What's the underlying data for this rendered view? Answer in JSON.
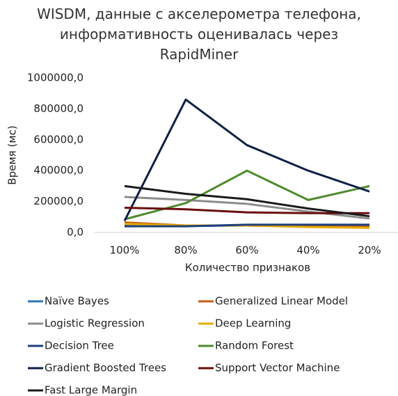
{
  "chart_data": {
    "type": "line",
    "title": "WISDM, данные с акселерометра телефона, информативность оценивалась через RapidMiner",
    "x_label": "Количество признаков",
    "y_label": "Время (мс)",
    "categories": [
      "100%",
      "80%",
      "60%",
      "40%",
      "20%"
    ],
    "ylim": [
      0,
      1000000
    ],
    "yticks": [
      {
        "value": 0,
        "label": "0,0"
      },
      {
        "value": 200000,
        "label": "200000,0"
      },
      {
        "value": 400000,
        "label": "400000,0"
      },
      {
        "value": 600000,
        "label": "600000,0"
      },
      {
        "value": 800000,
        "label": "800000,0"
      },
      {
        "value": 1000000,
        "label": "1000000,0"
      }
    ],
    "grid": false,
    "legend": "bottom",
    "series": [
      {
        "name": "Naïve Bayes",
        "color": "#2e75b6",
        "values": [
          45000,
          42000,
          45000,
          42000,
          42000
        ]
      },
      {
        "name": "Generalized Linear Model",
        "color": "#c55a11",
        "values": [
          65000,
          45000,
          45000,
          40000,
          40000
        ]
      },
      {
        "name": "Logistic Regression",
        "color": "#8c8c8c",
        "values": [
          230000,
          210000,
          185000,
          135000,
          90000
        ]
      },
      {
        "name": "Deep Learning",
        "color": "#e6ac00",
        "values": [
          55000,
          45000,
          45000,
          35000,
          30000
        ]
      },
      {
        "name": "Decision Tree",
        "color": "#1f3f7a",
        "values": [
          40000,
          40000,
          50000,
          50000,
          50000
        ]
      },
      {
        "name": "Random Forest",
        "color": "#4e8a2c",
        "values": [
          85000,
          190000,
          400000,
          210000,
          300000
        ]
      },
      {
        "name": "Gradient Boosted Trees",
        "color": "#0e1f45",
        "values": [
          75000,
          860000,
          565000,
          400000,
          265000
        ]
      },
      {
        "name": "Support Vector Machine",
        "color": "#6b0d0d",
        "values": [
          160000,
          150000,
          130000,
          125000,
          125000
        ]
      },
      {
        "name": "Fast Large Margin",
        "color": "#1a1a1a",
        "values": [
          300000,
          250000,
          215000,
          155000,
          105000
        ]
      }
    ]
  }
}
